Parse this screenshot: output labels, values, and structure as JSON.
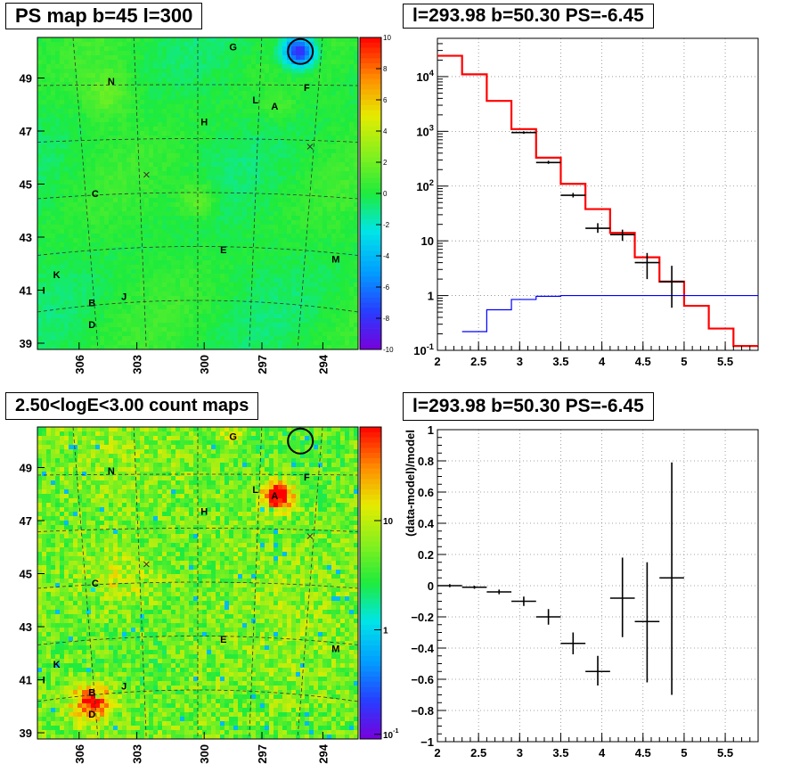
{
  "panels": {
    "map1": {
      "title": "PS map b=45 l=300"
    },
    "spectrum": {
      "title": "l=293.98 b=50.30 PS=-6.45"
    },
    "map2": {
      "title": "2.50<logE<3.00 count maps"
    },
    "residual": {
      "title": "l=293.98 b=50.30 PS=-6.45"
    }
  },
  "chart_data": [
    {
      "id": "map1",
      "type": "heatmap",
      "title": "PS map b=45 l=300",
      "x_ticks": [
        "306",
        "303",
        "300",
        "297",
        "294"
      ],
      "y_ticks": [
        "49",
        "47",
        "45",
        "43",
        "41",
        "39"
      ],
      "colorbar_ticks": [
        "10",
        "8",
        "6",
        "4",
        "2",
        "0",
        "-2",
        "-4",
        "-6",
        "-8",
        "-10"
      ],
      "colorbar_range": [
        -10,
        10
      ],
      "source_labels": [
        "G",
        "N",
        "L",
        "A",
        "F",
        "H",
        "C",
        "E",
        "M",
        "K",
        "I",
        "B",
        "J",
        "D"
      ],
      "highlight": "circle at top-right source",
      "colors": {
        "background": "#22ee33",
        "low": "#2255ff",
        "high": "#ffcc00"
      }
    },
    {
      "id": "spectrum",
      "type": "line",
      "title": "l=293.98 b=50.30 PS=-6.45",
      "x_ticks": [
        "2",
        "2.5",
        "3",
        "3.5",
        "4",
        "4.5",
        "5",
        "5.5"
      ],
      "y_ticks": [
        "10^-1",
        "1",
        "10",
        "10^2",
        "10^3",
        "10^4"
      ],
      "xlim": [
        2,
        5.9
      ],
      "ylim": [
        0.1,
        50000
      ],
      "yscale": "log",
      "grid": true,
      "series": [
        {
          "color": "#ff0000",
          "style": "step",
          "edges": [
            2,
            2.3,
            2.6,
            2.9,
            3.2,
            3.5,
            3.8,
            4.1,
            4.4,
            4.7,
            5.0,
            5.3,
            5.6,
            5.9
          ],
          "values": [
            24000,
            11000,
            3600,
            1100,
            330,
            110,
            38,
            14,
            5,
            1.8,
            0.65,
            0.25,
            0.12
          ]
        },
        {
          "color": "#0000ff",
          "style": "step",
          "edges": [
            2.3,
            2.6,
            2.9,
            3.2,
            3.5,
            3.8,
            4.1,
            4.4,
            4.7,
            5.0,
            5.3,
            5.6,
            5.9
          ],
          "values": [
            0.22,
            0.55,
            0.85,
            0.97,
            1.0,
            1.0,
            1.0,
            1.0,
            1.0,
            1.0,
            1.0,
            1.0
          ]
        },
        {
          "color": "#000000",
          "style": "points",
          "points": [
            {
              "x": 3.05,
              "y": 950,
              "xerr": 0.15,
              "ylo": 900,
              "yhi": 1000
            },
            {
              "x": 3.35,
              "y": 270,
              "xerr": 0.15,
              "ylo": 255,
              "yhi": 290
            },
            {
              "x": 3.65,
              "y": 68,
              "xerr": 0.15,
              "ylo": 62,
              "yhi": 75
            },
            {
              "x": 3.95,
              "y": 17,
              "xerr": 0.15,
              "ylo": 14,
              "yhi": 21
            },
            {
              "x": 4.25,
              "y": 13,
              "xerr": 0.15,
              "ylo": 10,
              "yhi": 16
            },
            {
              "x": 4.55,
              "y": 4,
              "xerr": 0.15,
              "ylo": 2,
              "yhi": 6
            },
            {
              "x": 4.85,
              "y": 1.8,
              "xerr": 0.15,
              "ylo": 0.6,
              "yhi": 3.5
            }
          ]
        }
      ]
    },
    {
      "id": "map2",
      "type": "heatmap",
      "title": "2.50<logE<3.00 count maps",
      "x_ticks": [
        "306",
        "303",
        "300",
        "297",
        "294"
      ],
      "y_ticks": [
        "49",
        "47",
        "45",
        "43",
        "41",
        "39"
      ],
      "colorbar_ticks": [
        "10",
        "1",
        "10^-1"
      ],
      "colorbar_scale": "log",
      "source_labels": [
        "G",
        "N",
        "L",
        "A",
        "F",
        "H",
        "C",
        "E",
        "M",
        "K",
        "I",
        "B",
        "J",
        "D"
      ],
      "highlight": "circle at top-right source"
    },
    {
      "id": "residual",
      "type": "scatter",
      "title": "l=293.98 b=50.30 PS=-6.45",
      "ylabel": "(data-model)/model",
      "x_ticks": [
        "2",
        "2.5",
        "3",
        "3.5",
        "4",
        "4.5",
        "5",
        "5.5"
      ],
      "y_ticks": [
        "1",
        "0.8",
        "0.6",
        "0.4",
        "0.2",
        "0",
        "-0.2",
        "-0.4",
        "-0.6",
        "-0.8",
        "-1"
      ],
      "xlim": [
        2,
        5.9
      ],
      "ylim": [
        -1,
        1
      ],
      "grid": true,
      "points": [
        {
          "x": 2.15,
          "y": 0.0,
          "xerr": 0.15,
          "ylo": -0.01,
          "yhi": 0.01
        },
        {
          "x": 2.45,
          "y": -0.01,
          "xerr": 0.15,
          "ylo": -0.02,
          "yhi": 0.0
        },
        {
          "x": 2.75,
          "y": -0.04,
          "xerr": 0.15,
          "ylo": -0.055,
          "yhi": -0.025
        },
        {
          "x": 3.05,
          "y": -0.1,
          "xerr": 0.15,
          "ylo": -0.13,
          "yhi": -0.07
        },
        {
          "x": 3.35,
          "y": -0.2,
          "xerr": 0.15,
          "ylo": -0.25,
          "yhi": -0.15
        },
        {
          "x": 3.65,
          "y": -0.37,
          "xerr": 0.15,
          "ylo": -0.44,
          "yhi": -0.3
        },
        {
          "x": 3.95,
          "y": -0.55,
          "xerr": 0.15,
          "ylo": -0.64,
          "yhi": -0.45
        },
        {
          "x": 4.25,
          "y": -0.08,
          "xerr": 0.15,
          "ylo": -0.33,
          "yhi": 0.18
        },
        {
          "x": 4.55,
          "y": -0.23,
          "xerr": 0.15,
          "ylo": -0.62,
          "yhi": 0.15
        },
        {
          "x": 4.85,
          "y": 0.05,
          "xerr": 0.15,
          "ylo": -0.7,
          "yhi": 0.79
        }
      ]
    }
  ]
}
